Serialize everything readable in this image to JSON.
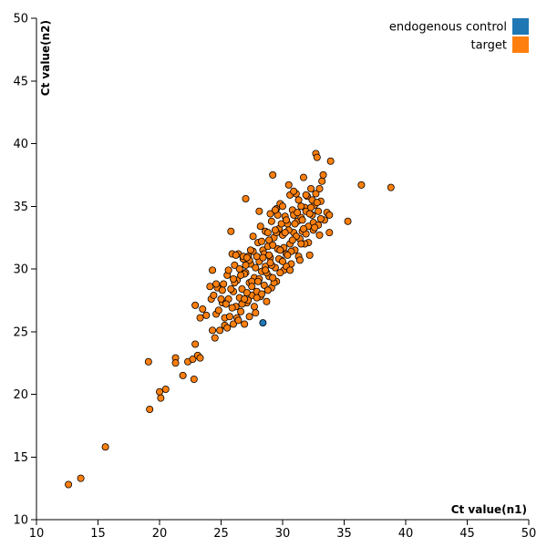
{
  "chart_data": {
    "type": "scatter",
    "xlabel": "Ct value(n1)",
    "ylabel": "Ct value(n2)",
    "xlim": [
      10,
      50
    ],
    "ylim": [
      10,
      50
    ],
    "xticks": [
      10,
      15,
      20,
      25,
      30,
      35,
      40,
      45,
      50
    ],
    "yticks": [
      10,
      15,
      20,
      25,
      30,
      35,
      40,
      45,
      50
    ],
    "grid": false,
    "legend_position": "top-right",
    "series": [
      {
        "name": "endogenous control",
        "color": "#1f77b4",
        "points": [
          [
            28.4,
            25.7
          ]
        ]
      },
      {
        "name": "target",
        "color": "#ff7f0e",
        "points": [
          [
            12.6,
            12.8
          ],
          [
            13.6,
            13.3
          ],
          [
            15.6,
            15.8
          ],
          [
            19.2,
            18.8
          ],
          [
            19.1,
            22.6
          ],
          [
            20.0,
            20.2
          ],
          [
            20.1,
            19.7
          ],
          [
            20.5,
            20.4
          ],
          [
            21.3,
            22.9
          ],
          [
            21.3,
            22.5
          ],
          [
            21.9,
            21.5
          ],
          [
            22.3,
            22.6
          ],
          [
            22.7,
            22.8
          ],
          [
            22.8,
            21.2
          ],
          [
            22.9,
            24.0
          ],
          [
            23.1,
            23.1
          ],
          [
            23.3,
            22.9
          ],
          [
            22.9,
            27.1
          ],
          [
            23.3,
            26.1
          ],
          [
            23.5,
            26.8
          ],
          [
            24.1,
            28.6
          ],
          [
            24.2,
            27.6
          ],
          [
            24.3,
            25.1
          ],
          [
            24.3,
            29.9
          ],
          [
            24.5,
            24.5
          ],
          [
            24.6,
            26.4
          ],
          [
            24.7,
            28.5
          ],
          [
            24.9,
            25.1
          ],
          [
            25.1,
            27.3
          ],
          [
            25.3,
            26.1
          ],
          [
            25.3,
            25.5
          ],
          [
            25.5,
            29.5
          ],
          [
            25.6,
            27.6
          ],
          [
            25.7,
            26.2
          ],
          [
            25.8,
            33.0
          ],
          [
            25.9,
            31.2
          ],
          [
            26.0,
            25.6
          ],
          [
            26.0,
            28.2
          ],
          [
            26.1,
            30.3
          ],
          [
            26.2,
            27.0
          ],
          [
            26.3,
            29.1
          ],
          [
            26.4,
            31.2
          ],
          [
            26.5,
            27.7
          ],
          [
            26.6,
            26.6
          ],
          [
            26.7,
            28.4
          ],
          [
            26.8,
            30.8
          ],
          [
            26.9,
            25.6
          ],
          [
            27.0,
            35.6
          ],
          [
            27.0,
            29.7
          ],
          [
            27.1,
            27.3
          ],
          [
            27.2,
            31.0
          ],
          [
            27.3,
            28.9
          ],
          [
            27.3,
            26.2
          ],
          [
            27.4,
            30.4
          ],
          [
            27.5,
            27.9
          ],
          [
            27.6,
            31.4
          ],
          [
            27.7,
            29.3
          ],
          [
            27.8,
            26.5
          ],
          [
            27.9,
            28.2
          ],
          [
            28.0,
            32.1
          ],
          [
            28.1,
            30.6
          ],
          [
            28.1,
            34.6
          ],
          [
            28.2,
            27.8
          ],
          [
            28.3,
            29.8
          ],
          [
            28.4,
            31.5
          ],
          [
            28.5,
            28.7
          ],
          [
            28.6,
            30.2
          ],
          [
            28.6,
            33.0
          ],
          [
            28.7,
            27.4
          ],
          [
            28.8,
            31.8
          ],
          [
            28.9,
            29.4
          ],
          [
            29.0,
            30.9
          ],
          [
            29.1,
            28.5
          ],
          [
            29.1,
            33.8
          ],
          [
            29.2,
            37.5
          ],
          [
            29.3,
            32.5
          ],
          [
            29.4,
            30.1
          ],
          [
            29.5,
            34.8
          ],
          [
            29.5,
            29.0
          ],
          [
            29.6,
            31.6
          ],
          [
            29.7,
            33.2
          ],
          [
            29.8,
            35.2
          ],
          [
            29.9,
            30.7
          ],
          [
            30.0,
            32.7
          ],
          [
            30.1,
            29.9
          ],
          [
            30.2,
            34.2
          ],
          [
            30.3,
            31.2
          ],
          [
            30.4,
            33.6
          ],
          [
            30.5,
            36.7
          ],
          [
            30.6,
            32.0
          ],
          [
            30.7,
            30.4
          ],
          [
            30.8,
            34.7
          ],
          [
            30.9,
            32.9
          ],
          [
            31.0,
            31.5
          ],
          [
            31.1,
            36.0
          ],
          [
            31.2,
            33.8
          ],
          [
            31.3,
            35.5
          ],
          [
            31.4,
            32.4
          ],
          [
            31.5,
            34.1
          ],
          [
            31.6,
            33.0
          ],
          [
            31.7,
            37.3
          ],
          [
            31.8,
            34.9
          ],
          [
            31.9,
            32.8
          ],
          [
            32.0,
            35.8
          ],
          [
            32.1,
            33.4
          ],
          [
            32.2,
            31.1
          ],
          [
            32.3,
            36.4
          ],
          [
            32.4,
            34.3
          ],
          [
            32.5,
            33.1
          ],
          [
            32.6,
            35.1
          ],
          [
            32.7,
            39.2
          ],
          [
            32.8,
            38.9
          ],
          [
            32.9,
            34.6
          ],
          [
            33.0,
            32.7
          ],
          [
            33.1,
            35.4
          ],
          [
            33.2,
            37.0
          ],
          [
            33.3,
            37.5
          ],
          [
            33.4,
            33.9
          ],
          [
            33.6,
            34.5
          ],
          [
            33.8,
            34.3
          ],
          [
            33.8,
            32.9
          ],
          [
            33.9,
            38.6
          ],
          [
            35.3,
            33.8
          ],
          [
            36.4,
            36.7
          ],
          [
            38.8,
            36.5
          ],
          [
            24.4,
            27.9
          ],
          [
            24.8,
            26.7
          ],
          [
            25.2,
            28.8
          ],
          [
            25.4,
            27.2
          ],
          [
            25.6,
            29.9
          ],
          [
            25.9,
            26.9
          ],
          [
            26.1,
            28.9
          ],
          [
            26.3,
            26.1
          ],
          [
            26.5,
            30.0
          ],
          [
            26.7,
            27.2
          ],
          [
            26.9,
            29.6
          ],
          [
            27.1,
            28.1
          ],
          [
            27.3,
            30.7
          ],
          [
            27.5,
            29.0
          ],
          [
            27.7,
            27.0
          ],
          [
            27.9,
            31.0
          ],
          [
            28.1,
            29.2
          ],
          [
            28.3,
            28.0
          ],
          [
            28.5,
            31.2
          ],
          [
            28.7,
            29.7
          ],
          [
            28.9,
            32.3
          ],
          [
            29.1,
            30.3
          ],
          [
            29.3,
            28.9
          ],
          [
            29.5,
            32.9
          ],
          [
            29.7,
            30.8
          ],
          [
            29.9,
            33.6
          ],
          [
            30.1,
            31.7
          ],
          [
            30.3,
            30.2
          ],
          [
            30.5,
            33.1
          ],
          [
            30.7,
            31.4
          ],
          [
            30.9,
            34.3
          ],
          [
            31.1,
            32.6
          ],
          [
            31.3,
            31.0
          ],
          [
            31.5,
            35.0
          ],
          [
            31.7,
            33.2
          ],
          [
            31.9,
            34.6
          ],
          [
            32.1,
            32.1
          ],
          [
            32.3,
            34.9
          ],
          [
            32.5,
            33.7
          ],
          [
            32.7,
            36.0
          ],
          [
            32.9,
            33.5
          ],
          [
            33.1,
            34.0
          ],
          [
            26.2,
            31.1
          ],
          [
            27.6,
            32.6
          ],
          [
            28.2,
            33.4
          ],
          [
            29.0,
            34.4
          ],
          [
            30.0,
            35.0
          ],
          [
            30.6,
            35.9
          ],
          [
            29.6,
            34.3
          ],
          [
            28.8,
            32.9
          ],
          [
            27.4,
            31.5
          ],
          [
            26.8,
            31.0
          ],
          [
            25.8,
            28.4
          ],
          [
            25.0,
            27.6
          ],
          [
            24.6,
            28.8
          ],
          [
            23.8,
            26.3
          ],
          [
            27.8,
            30.1
          ],
          [
            28.4,
            30.9
          ],
          [
            29.2,
            31.9
          ],
          [
            30.2,
            32.9
          ],
          [
            31.0,
            33.6
          ],
          [
            31.8,
            32.0
          ],
          [
            32.6,
            33.3
          ],
          [
            31.4,
            30.7
          ],
          [
            30.6,
            29.9
          ],
          [
            29.8,
            29.7
          ],
          [
            28.8,
            28.3
          ],
          [
            27.9,
            27.7
          ],
          [
            27.2,
            27.5
          ],
          [
            26.4,
            25.9
          ],
          [
            25.5,
            25.3
          ],
          [
            30.8,
            32.3
          ],
          [
            29.4,
            33.1
          ],
          [
            28.6,
            29.9
          ],
          [
            27.0,
            30.3
          ],
          [
            31.6,
            33.9
          ],
          [
            32.2,
            34.4
          ],
          [
            30.4,
            31.1
          ],
          [
            29.0,
            30.5
          ],
          [
            26.6,
            29.5
          ],
          [
            28.0,
            29.0
          ],
          [
            29.8,
            31.5
          ],
          [
            31.2,
            34.5
          ],
          [
            32.4,
            35.5
          ],
          [
            30.9,
            36.2
          ],
          [
            29.4,
            34.7
          ],
          [
            28.3,
            32.2
          ],
          [
            27.1,
            30.9
          ],
          [
            26.0,
            29.2
          ],
          [
            25.1,
            28.3
          ],
          [
            30.3,
            33.9
          ],
          [
            31.9,
            35.9
          ],
          [
            32.8,
            35.3
          ],
          [
            33.0,
            36.4
          ],
          [
            31.5,
            32.0
          ],
          [
            28.9,
            31.1
          ],
          [
            27.5,
            28.6
          ],
          [
            26.9,
            27.6
          ],
          [
            30.0,
            30.6
          ],
          [
            29.2,
            29.3
          ]
        ]
      }
    ]
  }
}
